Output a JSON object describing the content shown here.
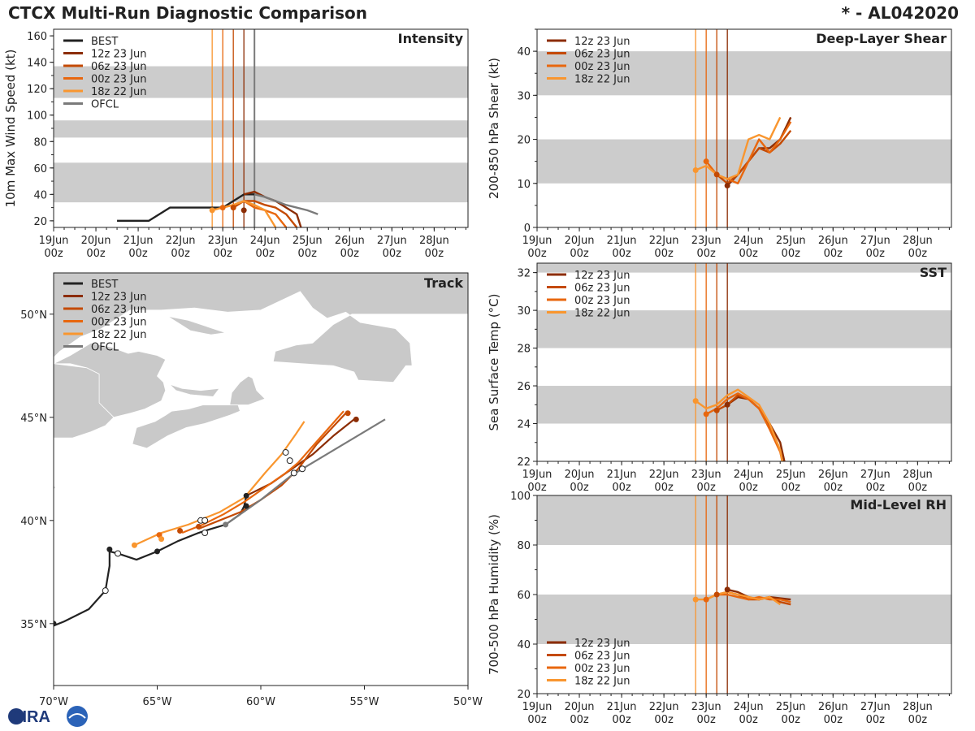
{
  "header": {
    "title": "CTCX Multi-Run Diagnostic Comparison",
    "storm_id": "* - AL042020"
  },
  "logo": {
    "text": "CIRA"
  },
  "colors": {
    "BEST": "#222222",
    "12z 23 Jun": "#8c2d04",
    "06z 23 Jun": "#c44a03",
    "00z 23 Jun": "#e8670e",
    "18z 22 Jun": "#f9962f",
    "OFCL": "#7a7a7a",
    "band": "#cccccc",
    "land": "#c9c9c9"
  },
  "time_ticks": [
    "19Jun\n00z",
    "20Jun\n00z",
    "21Jun\n00z",
    "22Jun\n00z",
    "23Jun\n00z",
    "24Jun\n00z",
    "25Jun\n00z",
    "26Jun\n00z",
    "27Jun\n00z",
    "28Jun\n00z"
  ],
  "init_times_days": [
    {
      "run": "18z 22 Jun",
      "t": 3.75
    },
    {
      "run": "00z 23 Jun",
      "t": 4.0
    },
    {
      "run": "06z 23 Jun",
      "t": 4.25
    },
    {
      "run": "12z 23 Jun",
      "t": 4.5
    },
    {
      "run": "OFCL",
      "t": 4.75
    }
  ],
  "chart_data": [
    {
      "id": "intensity",
      "type": "line",
      "title": "Intensity",
      "ylabel": "10m Max Wind Speed (kt)",
      "xlabel": "",
      "xlim": [
        0,
        9.8
      ],
      "ylim": [
        15,
        165
      ],
      "yticks": [
        20,
        40,
        60,
        80,
        100,
        120,
        140,
        160
      ],
      "bands": [
        [
          34,
          64
        ],
        [
          83,
          96
        ],
        [
          113,
          137
        ]
      ],
      "legend": [
        "BEST",
        "12z 23 Jun",
        "06z 23 Jun",
        "00z 23 Jun",
        "18z 22 Jun",
        "OFCL"
      ],
      "series": [
        {
          "name": "BEST",
          "x": [
            1.5,
            2.25,
            2.75,
            3.5,
            4.0,
            4.5,
            4.75
          ],
          "y": [
            20,
            20,
            30,
            30,
            30,
            40,
            40
          ]
        },
        {
          "name": "12z 23 Jun",
          "x": [
            4.5,
            4.75,
            5.0,
            5.25,
            5.5,
            5.75,
            5.85
          ],
          "y": [
            40,
            42,
            38,
            35,
            30,
            25,
            15
          ]
        },
        {
          "name": "06z 23 Jun",
          "x": [
            4.25,
            4.5,
            4.75,
            5.0,
            5.25,
            5.5,
            5.75
          ],
          "y": [
            30,
            35,
            35,
            32,
            30,
            25,
            15
          ]
        },
        {
          "name": "00z 23 Jun",
          "x": [
            4.0,
            4.25,
            4.5,
            4.75,
            5.0,
            5.25,
            5.5
          ],
          "y": [
            30,
            32,
            35,
            30,
            28,
            25,
            15
          ]
        },
        {
          "name": "18z 22 Jun",
          "x": [
            3.75,
            4.0,
            4.25,
            4.5,
            4.75,
            5.0,
            5.25
          ],
          "y": [
            28,
            30,
            32,
            35,
            32,
            28,
            15
          ]
        },
        {
          "name": "OFCL",
          "x": [
            4.75,
            5.0,
            5.25,
            5.5,
            6.0,
            6.25
          ],
          "y": [
            40,
            38,
            35,
            32,
            28,
            25
          ]
        }
      ],
      "markers": [
        {
          "name": "18z 22 Jun",
          "x": 3.75,
          "y": 28
        },
        {
          "name": "00z 23 Jun",
          "x": 4.0,
          "y": 30
        },
        {
          "name": "06z 23 Jun",
          "x": 4.25,
          "y": 30
        },
        {
          "name": "12z 23 Jun",
          "x": 4.5,
          "y": 28
        }
      ]
    },
    {
      "id": "shear",
      "type": "line",
      "title": "Deep-Layer Shear",
      "ylabel": "200-850 hPa Shear (kt)",
      "xlabel": "",
      "xlim": [
        0,
        9.8
      ],
      "ylim": [
        0,
        45
      ],
      "yticks": [
        0,
        10,
        20,
        30,
        40
      ],
      "bands": [
        [
          10,
          20
        ],
        [
          30,
          40
        ]
      ],
      "legend": [
        "12z 23 Jun",
        "06z 23 Jun",
        "00z 23 Jun",
        "18z 22 Jun"
      ],
      "series": [
        {
          "name": "12z 23 Jun",
          "x": [
            4.5,
            4.75,
            5.0,
            5.25,
            5.5,
            5.75,
            6.0
          ],
          "y": [
            9.5,
            12,
            15,
            18,
            18,
            20,
            25
          ]
        },
        {
          "name": "06z 23 Jun",
          "x": [
            4.25,
            4.5,
            4.75,
            5.0,
            5.25,
            5.5,
            5.75,
            6.0
          ],
          "y": [
            12,
            10,
            12,
            15,
            18,
            17,
            19,
            22
          ]
        },
        {
          "name": "00z 23 Jun",
          "x": [
            4.0,
            4.25,
            4.5,
            4.75,
            5.0,
            5.25,
            5.5,
            5.75,
            6.0
          ],
          "y": [
            15,
            12,
            11,
            10,
            15,
            20,
            17,
            20,
            24
          ]
        },
        {
          "name": "18z 22 Jun",
          "x": [
            3.75,
            4.0,
            4.25,
            4.5,
            4.75,
            5.0,
            5.25,
            5.5,
            5.75
          ],
          "y": [
            13,
            14,
            12,
            11,
            12,
            20,
            21,
            20,
            25
          ]
        }
      ],
      "markers": [
        {
          "name": "18z 22 Jun",
          "x": 3.75,
          "y": 13
        },
        {
          "name": "00z 23 Jun",
          "x": 4.0,
          "y": 15
        },
        {
          "name": "06z 23 Jun",
          "x": 4.25,
          "y": 12
        },
        {
          "name": "12z 23 Jun",
          "x": 4.5,
          "y": 9.5
        }
      ]
    },
    {
      "id": "sst",
      "type": "line",
      "title": "SST",
      "ylabel": "Sea Surface Temp (°C)",
      "xlabel": "",
      "xlim": [
        0,
        9.8
      ],
      "ylim": [
        22,
        32.5
      ],
      "yticks": [
        22,
        24,
        26,
        28,
        30,
        32
      ],
      "bands": [
        [
          24,
          26
        ],
        [
          28,
          30
        ],
        [
          32,
          32.5
        ]
      ],
      "legend": [
        "12z 23 Jun",
        "06z 23 Jun",
        "00z 23 Jun",
        "18z 22 Jun"
      ],
      "series": [
        {
          "name": "12z 23 Jun",
          "x": [
            4.5,
            4.75,
            5.0,
            5.25,
            5.5,
            5.75,
            5.85
          ],
          "y": [
            25.0,
            25.4,
            25.3,
            24.8,
            24.0,
            23.0,
            22.0
          ]
        },
        {
          "name": "06z 23 Jun",
          "x": [
            4.25,
            4.5,
            4.75,
            5.0,
            5.25,
            5.5,
            5.75,
            5.8
          ],
          "y": [
            24.7,
            25.0,
            25.5,
            25.3,
            24.8,
            23.8,
            22.6,
            22.0
          ]
        },
        {
          "name": "00z 23 Jun",
          "x": [
            4.0,
            4.25,
            4.5,
            4.75,
            5.0,
            5.25,
            5.5,
            5.75,
            5.8
          ],
          "y": [
            24.5,
            24.8,
            25.3,
            25.6,
            25.3,
            24.8,
            23.7,
            22.5,
            22.0
          ]
        },
        {
          "name": "18z 22 Jun",
          "x": [
            3.75,
            4.0,
            4.25,
            4.5,
            4.75,
            5.0,
            5.25,
            5.5,
            5.75,
            5.8
          ],
          "y": [
            25.2,
            24.8,
            25.0,
            25.5,
            25.8,
            25.4,
            25.0,
            24.0,
            22.6,
            22.0
          ]
        }
      ],
      "markers": [
        {
          "name": "18z 22 Jun",
          "x": 3.75,
          "y": 25.2
        },
        {
          "name": "00z 23 Jun",
          "x": 4.0,
          "y": 24.5
        },
        {
          "name": "06z 23 Jun",
          "x": 4.25,
          "y": 24.7
        },
        {
          "name": "12z 23 Jun",
          "x": 4.5,
          "y": 25.0
        }
      ]
    },
    {
      "id": "rh",
      "type": "line",
      "title": "Mid-Level RH",
      "ylabel": "700-500 hPa Humidity (%)",
      "xlabel": "",
      "xlim": [
        0,
        9.8
      ],
      "ylim": [
        20,
        100
      ],
      "yticks": [
        20,
        40,
        60,
        80,
        100
      ],
      "bands": [
        [
          40,
          60
        ],
        [
          80,
          100
        ]
      ],
      "legend": [
        "12z 23 Jun",
        "06z 23 Jun",
        "00z 23 Jun",
        "18z 22 Jun"
      ],
      "series": [
        {
          "name": "12z 23 Jun",
          "x": [
            4.5,
            4.75,
            5.0,
            5.25,
            5.5,
            5.75,
            6.0
          ],
          "y": [
            62,
            61,
            59,
            58,
            59,
            58.5,
            58
          ]
        },
        {
          "name": "06z 23 Jun",
          "x": [
            4.25,
            4.5,
            4.75,
            5.0,
            5.25,
            5.5,
            5.75,
            6.0
          ],
          "y": [
            60,
            61,
            60,
            58,
            58,
            59,
            57,
            56
          ]
        },
        {
          "name": "00z 23 Jun",
          "x": [
            4.0,
            4.25,
            4.5,
            4.75,
            5.0,
            5.25,
            5.5,
            5.75,
            6.0
          ],
          "y": [
            58,
            60,
            60,
            59,
            58,
            59,
            58,
            58,
            57
          ]
        },
        {
          "name": "18z 22 Jun",
          "x": [
            3.75,
            4.0,
            4.25,
            4.5,
            4.75,
            5.0,
            5.25,
            5.5,
            5.75
          ],
          "y": [
            58,
            58,
            60,
            61,
            60,
            59,
            58,
            59,
            56
          ]
        }
      ],
      "markers": [
        {
          "name": "18z 22 Jun",
          "x": 3.75,
          "y": 58
        },
        {
          "name": "00z 23 Jun",
          "x": 4.0,
          "y": 58
        },
        {
          "name": "06z 23 Jun",
          "x": 4.25,
          "y": 60
        },
        {
          "name": "12z 23 Jun",
          "x": 4.5,
          "y": 62
        }
      ]
    },
    {
      "id": "track",
      "type": "line",
      "title": "Track",
      "xlabel": "",
      "ylabel": "",
      "xlim": [
        -70,
        -50
      ],
      "ylim": [
        32,
        52
      ],
      "xticks": [
        -70,
        -65,
        -60,
        -55,
        -50
      ],
      "xtick_labels": [
        "70°W",
        "65°W",
        "60°W",
        "55°W",
        "50°W"
      ],
      "yticks": [
        35,
        40,
        45,
        50
      ],
      "ytick_labels": [
        "35°N",
        "40°N",
        "45°N",
        "50°N"
      ],
      "legend": [
        "BEST",
        "12z 23 Jun",
        "06z 23 Jun",
        "00z 23 Jun",
        "18z 22 Jun",
        "OFCL"
      ],
      "series": [
        {
          "name": "BEST",
          "lon": [
            -70.0,
            -69.5,
            -68.3,
            -67.5,
            -67.3,
            -67.3,
            -66.9,
            -66.0,
            -65.0,
            -64.0,
            -63.0,
            -62.7,
            -61.7,
            -61.0,
            -60.8,
            -60.7
          ],
          "lat": [
            34.9,
            35.1,
            35.7,
            36.6,
            37.8,
            38.5,
            38.4,
            38.1,
            38.5,
            39.0,
            39.4,
            39.5,
            39.8,
            40.3,
            40.7,
            41.2
          ]
        },
        {
          "name": "12z 23 Jun",
          "lon": [
            -60.7,
            -59.5,
            -58.5,
            -57.5,
            -56.5,
            -55.5
          ],
          "lat": [
            41.2,
            41.8,
            42.5,
            43.2,
            44.1,
            44.9
          ]
        },
        {
          "name": "06z 23 Jun",
          "lon": [
            -63.0,
            -62.0,
            -61.0,
            -60.0,
            -59.0,
            -58.2,
            -57.3,
            -55.9
          ],
          "lat": [
            39.6,
            40.0,
            40.4,
            41.0,
            41.7,
            42.5,
            43.7,
            45.2
          ]
        },
        {
          "name": "00z 23 Jun",
          "lon": [
            -63.8,
            -62.8,
            -61.8,
            -60.8,
            -59.8,
            -58.8,
            -58.2,
            -56.0
          ],
          "lat": [
            39.4,
            39.8,
            40.3,
            40.9,
            41.6,
            42.3,
            42.8,
            45.3
          ]
        },
        {
          "name": "18z 22 Jun",
          "lon": [
            -66.1,
            -64.8,
            -63.5,
            -62.0,
            -60.8,
            -59.8,
            -59.0,
            -58.3,
            -57.9
          ],
          "lat": [
            38.8,
            39.4,
            39.8,
            40.4,
            41.1,
            42.3,
            43.2,
            44.2,
            44.8
          ]
        },
        {
          "name": "OFCL",
          "lon": [
            -61.7,
            -60.0,
            -58.5,
            -57.0,
            -55.5,
            -54.0
          ],
          "lat": [
            39.8,
            41.0,
            42.2,
            43.1,
            44.0,
            44.9
          ]
        }
      ],
      "markers": [
        {
          "name": "BEST",
          "lon": -70.0,
          "lat": 35.0,
          "fill": "solid"
        },
        {
          "name": "BEST",
          "lon": -67.5,
          "lat": 36.6,
          "fill": "open"
        },
        {
          "name": "BEST",
          "lon": -67.3,
          "lat": 38.6,
          "fill": "solid"
        },
        {
          "name": "BEST",
          "lon": -66.9,
          "lat": 38.4,
          "fill": "open"
        },
        {
          "name": "BEST",
          "lon": -65.0,
          "lat": 38.5,
          "fill": "solid"
        },
        {
          "name": "BEST",
          "lon": -62.7,
          "lat": 39.4,
          "fill": "open"
        },
        {
          "name": "BEST",
          "lon": -60.7,
          "lat": 40.7,
          "fill": "solid"
        },
        {
          "name": "BEST",
          "lon": -60.7,
          "lat": 41.2,
          "fill": "solid"
        },
        {
          "name": "12z 23 Jun",
          "lon": -55.4,
          "lat": 44.9,
          "fill": "solid"
        },
        {
          "name": "06z 23 Jun",
          "lon": -55.8,
          "lat": 45.2,
          "fill": "solid"
        },
        {
          "name": "00z 23 Jun",
          "lon": -64.9,
          "lat": 39.3,
          "fill": "solid"
        },
        {
          "name": "00z 23 Jun",
          "lon": -62.9,
          "lat": 40.0,
          "fill": "open"
        },
        {
          "name": "00z 23 Jun",
          "lon": -58.8,
          "lat": 43.3,
          "fill": "open"
        },
        {
          "name": "00z 23 Jun",
          "lon": -58.6,
          "lat": 42.9,
          "fill": "open"
        },
        {
          "name": "06z 23 Jun",
          "lon": -63.0,
          "lat": 39.7,
          "fill": "solid"
        },
        {
          "name": "06z 23 Jun",
          "lon": -62.7,
          "lat": 40.0,
          "fill": "open"
        },
        {
          "name": "06z 23 Jun",
          "lon": -58.4,
          "lat": 42.3,
          "fill": "open"
        },
        {
          "name": "06z 23 Jun",
          "lon": -58.0,
          "lat": 42.5,
          "fill": "open"
        },
        {
          "name": "06z 23 Jun",
          "lon": -63.9,
          "lat": 39.5,
          "fill": "solid"
        },
        {
          "name": "18z 22 Jun",
          "lon": -66.1,
          "lat": 38.8,
          "fill": "solid"
        },
        {
          "name": "18z 22 Jun",
          "lon": -64.8,
          "lat": 39.1,
          "fill": "solid"
        },
        {
          "name": "OFCL",
          "lon": -61.7,
          "lat": 39.8,
          "fill": "solid"
        }
      ]
    }
  ]
}
